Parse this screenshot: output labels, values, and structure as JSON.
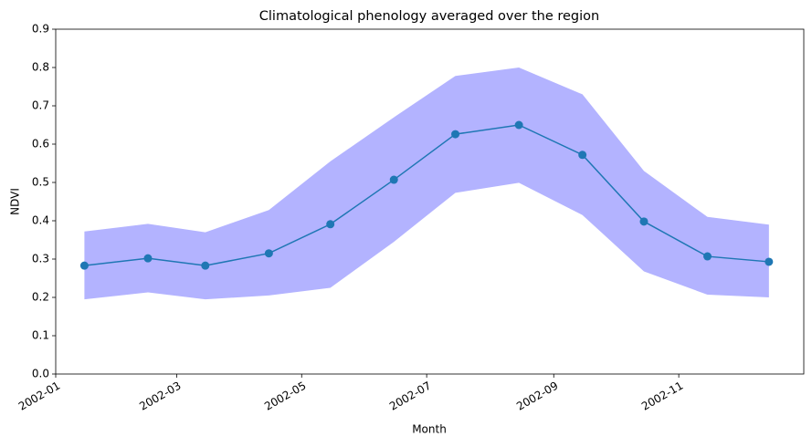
{
  "chart_data": {
    "type": "line",
    "title": "Climatological phenology averaged over the region",
    "xlabel": "Month",
    "ylabel": "NDVI",
    "x": [
      "2002-01",
      "2002-02",
      "2002-03",
      "2002-04",
      "2002-05",
      "2002-06",
      "2002-07",
      "2002-08",
      "2002-09",
      "2002-10",
      "2002-11",
      "2002-12"
    ],
    "series": [
      {
        "color": "#1f77b4",
        "values": [
          0.283,
          0.302,
          0.283,
          0.315,
          0.391,
          0.507,
          0.626,
          0.65,
          0.572,
          0.398,
          0.307,
          0.293
        ]
      }
    ],
    "band": {
      "color": "#b3b3ff",
      "upper": [
        0.372,
        0.392,
        0.37,
        0.428,
        0.555,
        0.67,
        0.778,
        0.8,
        0.73,
        0.53,
        0.41,
        0.39
      ],
      "lower": [
        0.195,
        0.213,
        0.195,
        0.205,
        0.225,
        0.345,
        0.473,
        0.499,
        0.415,
        0.268,
        0.207,
        0.2
      ]
    },
    "xlim": [
      "2002-01",
      "2003-01"
    ],
    "xticks": [
      "2002-01",
      "2002-03",
      "2002-05",
      "2002-07",
      "2002-09",
      "2002-11"
    ],
    "ylim": [
      0,
      0.9
    ],
    "yticks": [
      {
        "value": 0,
        "label": "0.0"
      },
      0.1,
      0.2,
      0.3,
      0.4,
      0.5,
      0.6,
      0.7,
      0.8,
      0.9
    ]
  }
}
